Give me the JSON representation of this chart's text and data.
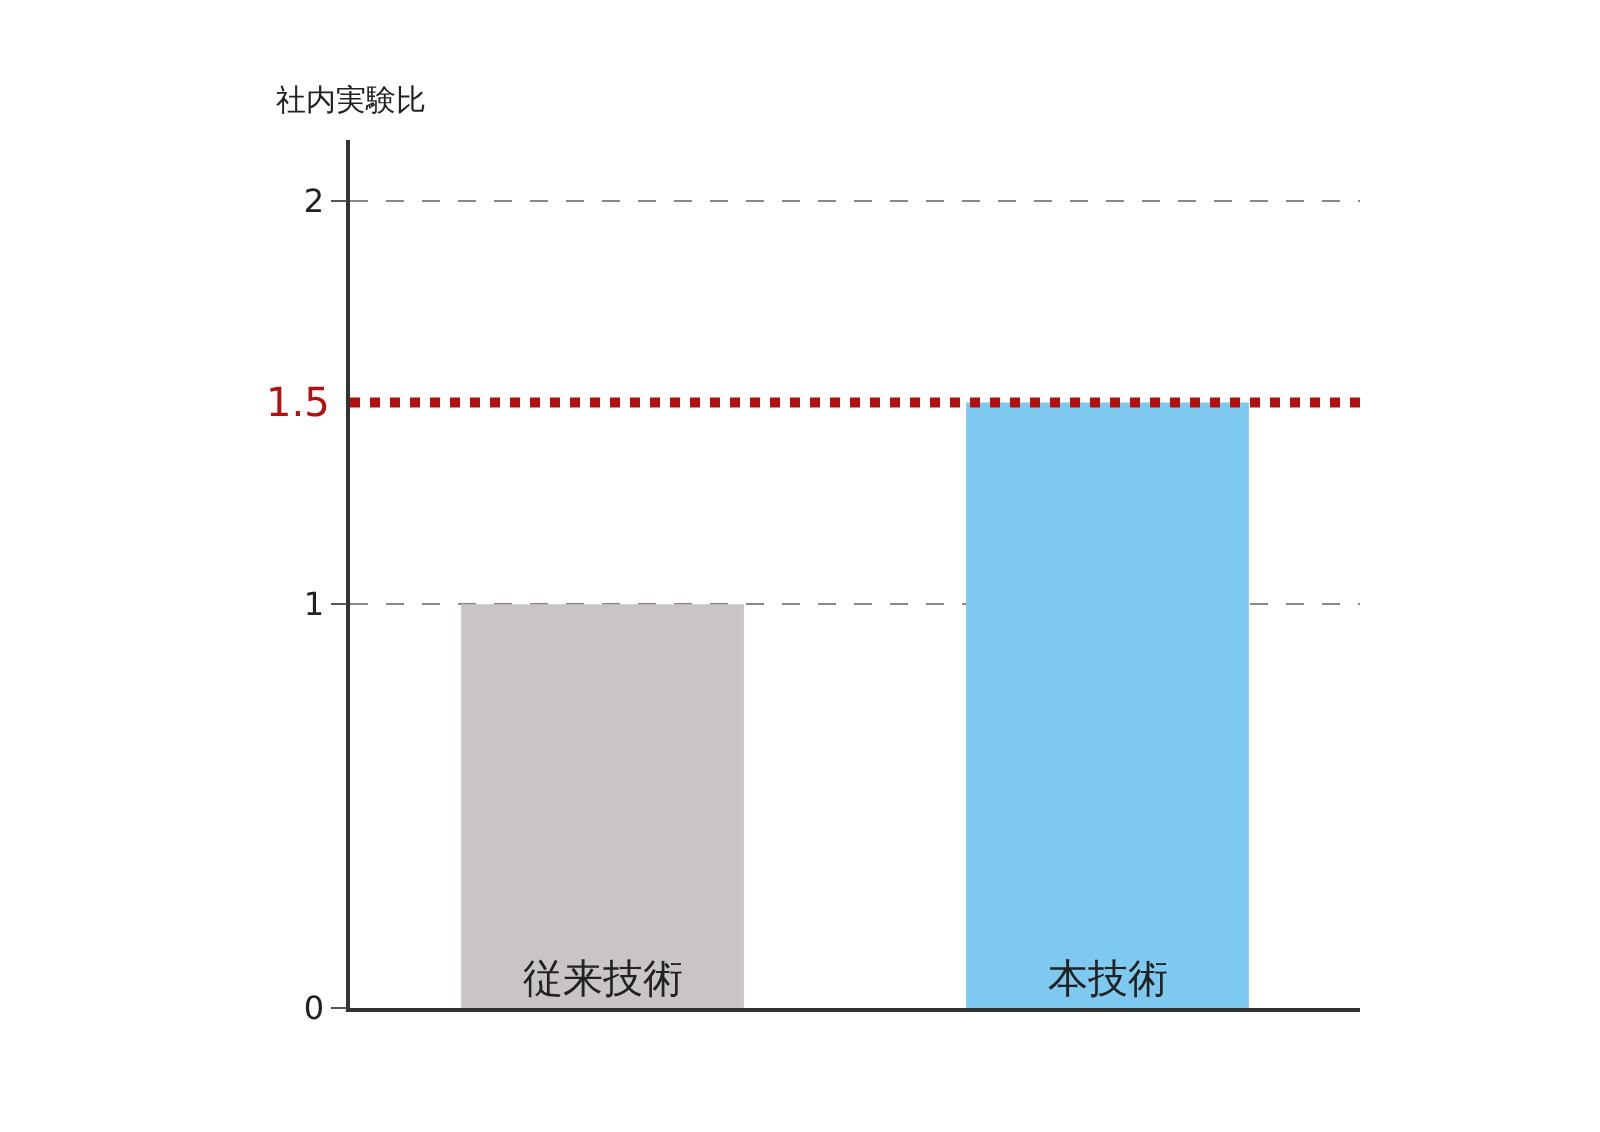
{
  "chart_data": {
    "type": "bar",
    "ylabel": "社内実験比",
    "categories": [
      "従来技術",
      "本技術"
    ],
    "values": [
      1,
      1.5
    ],
    "colors": [
      "#c8c4c8",
      "#7ec9ef"
    ],
    "ylim": [
      0,
      2.15
    ],
    "yticks": [
      0,
      1,
      2
    ],
    "grid": "y",
    "ref_lines": [
      {
        "axis": "y",
        "value": 1.5,
        "label": "1.5",
        "color": "#b01010",
        "line_style": "dotted"
      }
    ]
  }
}
